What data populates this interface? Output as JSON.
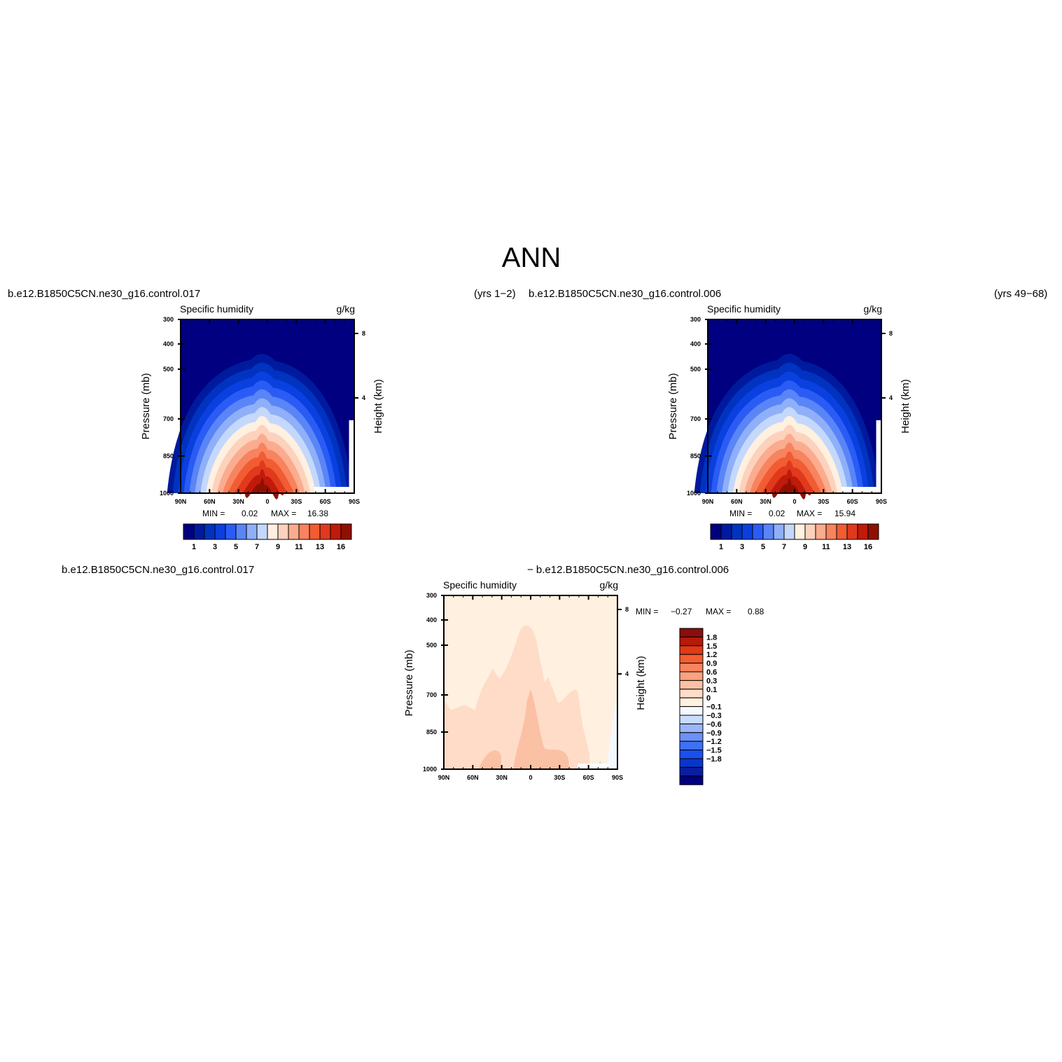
{
  "page": {
    "main_title": "ANN",
    "caption_top_left": "b.e12.B1850C5CN.ne30_g16.control.017",
    "caption_top_middle": "(yrs  1−2)",
    "caption_top_right_case": "b.e12.B1850C5CN.ne30_g16.control.006",
    "caption_top_right_years": "(yrs  49−68)",
    "caption_bottom_left": "b.e12.B1850C5CN.ne30_g16.control.017",
    "caption_bottom_right": "− b.e12.B1850C5CN.ne30_g16.control.006"
  },
  "colors": {
    "seq": [
      "#000080",
      "#001a9e",
      "#0033bf",
      "#0a3fe0",
      "#2a5cf5",
      "#5a85f7",
      "#8fb0f8",
      "#c4d8fc",
      "#fff0e0",
      "#fcd2bd",
      "#fbac8e",
      "#f8835f",
      "#f15c33",
      "#e0391c",
      "#c01a0a",
      "#901000"
    ],
    "diff": [
      "#000080",
      "#0a1ea0",
      "#0a36c8",
      "#1a50f0",
      "#4070f5",
      "#6a92f7",
      "#9bb6f9",
      "#cadcfb",
      "#f4f9ff",
      "#fff0e0",
      "#ffdcc8",
      "#fbc1a5",
      "#fba27e",
      "#f8835f",
      "#f45e30",
      "#e03a17",
      "#b51a0a",
      "#8a0e0e"
    ]
  },
  "chart_data": [
    {
      "type": "heatmap",
      "id": "model_017",
      "title": "Specific humidity",
      "units": "g/kg",
      "xlabel": "",
      "ylabel": "Pressure (mb)",
      "y2label": "Height (km)",
      "xticks": [
        "90N",
        "60N",
        "30N",
        "0",
        "30S",
        "60S",
        "90S"
      ],
      "yticks": [
        "300",
        "400",
        "500",
        "700",
        "850",
        "1000"
      ],
      "y2ticks": [
        "8",
        "4"
      ],
      "min_label": "MIN =",
      "min_value": "0.02",
      "max_label": "MAX =",
      "max_value": "16.38",
      "levels": [
        "1",
        "3",
        "5",
        "7",
        "9",
        "11",
        "13",
        "16"
      ],
      "ylim": [
        300,
        1000
      ],
      "xlim": [
        -90,
        90
      ]
    },
    {
      "type": "heatmap",
      "id": "model_006",
      "title": "Specific humidity",
      "units": "g/kg",
      "xlabel": "",
      "ylabel": "Pressure (mb)",
      "y2label": "Height (km)",
      "xticks": [
        "90N",
        "60N",
        "30N",
        "0",
        "30S",
        "60S",
        "90S"
      ],
      "yticks": [
        "300",
        "400",
        "500",
        "700",
        "850",
        "1000"
      ],
      "y2ticks": [
        "8",
        "4"
      ],
      "min_label": "MIN =",
      "min_value": "0.02",
      "max_label": "MAX =",
      "max_value": "15.94",
      "levels": [
        "1",
        "3",
        "5",
        "7",
        "9",
        "11",
        "13",
        "16"
      ],
      "ylim": [
        300,
        1000
      ],
      "xlim": [
        -90,
        90
      ]
    },
    {
      "type": "heatmap",
      "id": "difference",
      "title": "Specific humidity",
      "units": "g/kg",
      "xlabel": "",
      "ylabel": "Pressure (mb)",
      "y2label": "Height (km)",
      "xticks": [
        "90N",
        "60N",
        "30N",
        "0",
        "30S",
        "60S",
        "90S"
      ],
      "yticks": [
        "300",
        "400",
        "500",
        "700",
        "850",
        "1000"
      ],
      "y2ticks": [
        "8",
        "4"
      ],
      "min_label": "MIN =",
      "min_value": "−0.27",
      "max_label": "MAX =",
      "max_value": "0.88",
      "levels": [
        "1.8",
        "1.5",
        "1.2",
        "0.9",
        "0.6",
        "0.3",
        "0.1",
        "0",
        "−0.1",
        "−0.3",
        "−0.6",
        "−0.9",
        "−1.2",
        "−1.5",
        "−1.8"
      ],
      "ylim": [
        300,
        1000
      ],
      "xlim": [
        -90,
        90
      ]
    }
  ]
}
